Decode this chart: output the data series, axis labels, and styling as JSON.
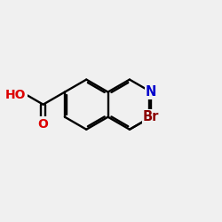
{
  "background_color": "#f0f0f0",
  "bond_color": "#000000",
  "atom_colors": {
    "Br": "#8b0000",
    "N": "#0000cc",
    "O": "#dd0000",
    "C": "#000000"
  },
  "figsize": [
    2.5,
    2.5
  ],
  "dpi": 100,
  "bond_lw": 1.7,
  "double_sep": 0.09,
  "double_shorten": 0.13,
  "font_size_atom": 10.5
}
